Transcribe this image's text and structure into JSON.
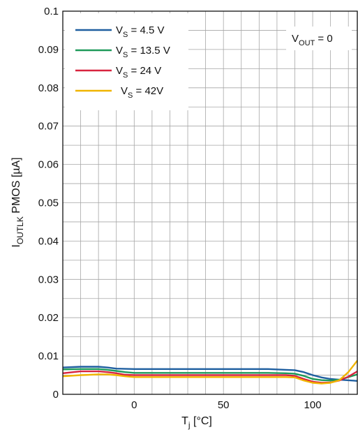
{
  "chart_data": {
    "type": "line",
    "title": "",
    "xlabel": {
      "main": "T",
      "sub": "j",
      "rest": " [°C]"
    },
    "ylabel": {
      "main": "I",
      "sub": "OUTLK",
      "rest": " PMOS [µA]"
    },
    "xlim": [
      -40,
      125
    ],
    "ylim": [
      0,
      0.1
    ],
    "x_ticks": [
      0,
      50,
      100
    ],
    "y_ticks": [
      0,
      0.01,
      0.02,
      0.03,
      0.04,
      0.05,
      0.06,
      0.07,
      0.08,
      0.09,
      0.1
    ],
    "y_tick_labels": [
      "0",
      "0.01",
      "0.02",
      "0.03",
      "0.04",
      "0.05",
      "0.06",
      "0.07",
      "0.08",
      "0.09",
      "0.1"
    ],
    "x_tick_labels": [
      "0",
      "50",
      "100"
    ],
    "grid": true,
    "legend_position": "top-left",
    "annotation": {
      "main": "V",
      "sub": "OUT",
      "rest": " = 0"
    },
    "series": [
      {
        "name": {
          "main": "V",
          "sub": "S",
          "rest": " = 4.5 V"
        },
        "color": "#1f5fa0",
        "x": [
          -40,
          -30,
          -20,
          -15,
          -10,
          0,
          20,
          50,
          75,
          85,
          90,
          95,
          100,
          105,
          110,
          115,
          125
        ],
        "y": [
          0.007,
          0.0072,
          0.0072,
          0.007,
          0.0067,
          0.0066,
          0.0066,
          0.0066,
          0.0066,
          0.0064,
          0.0063,
          0.0058,
          0.005,
          0.0044,
          0.004,
          0.0038,
          0.0035
        ]
      },
      {
        "name": {
          "main": "V",
          "sub": "S",
          "rest": " = 13.5 V"
        },
        "color": "#1e9a5a",
        "x": [
          -40,
          -30,
          -20,
          -15,
          -10,
          -5,
          0,
          20,
          50,
          75,
          85,
          90,
          95,
          100,
          105,
          110,
          115,
          120,
          125
        ],
        "y": [
          0.0065,
          0.0066,
          0.0066,
          0.0064,
          0.0061,
          0.0058,
          0.0056,
          0.0056,
          0.0056,
          0.0056,
          0.0055,
          0.0054,
          0.0048,
          0.004,
          0.0037,
          0.0036,
          0.0038,
          0.0045,
          0.0052
        ]
      },
      {
        "name": {
          "main": "V",
          "sub": "S",
          "rest": " = 24 V"
        },
        "color": "#d8243f",
        "x": [
          -40,
          -30,
          -20,
          -15,
          -10,
          -5,
          0,
          20,
          50,
          75,
          85,
          90,
          95,
          100,
          105,
          110,
          115,
          120,
          125
        ],
        "y": [
          0.0055,
          0.006,
          0.006,
          0.0058,
          0.0055,
          0.0051,
          0.005,
          0.005,
          0.005,
          0.005,
          0.005,
          0.0048,
          0.004,
          0.0033,
          0.003,
          0.0031,
          0.0036,
          0.0046,
          0.006
        ]
      },
      {
        "name": {
          "main": "V",
          "sub": "S",
          "rest": " = 42V"
        },
        "color": "#f0b400",
        "x": [
          -40,
          -30,
          -20,
          -15,
          -10,
          -5,
          0,
          20,
          50,
          75,
          85,
          90,
          95,
          100,
          105,
          110,
          115,
          120,
          125
        ],
        "y": [
          0.0047,
          0.005,
          0.0052,
          0.0052,
          0.005,
          0.0047,
          0.0045,
          0.0045,
          0.0045,
          0.0045,
          0.0045,
          0.0044,
          0.0036,
          0.003,
          0.0028,
          0.003,
          0.0037,
          0.0058,
          0.0088
        ]
      }
    ]
  }
}
